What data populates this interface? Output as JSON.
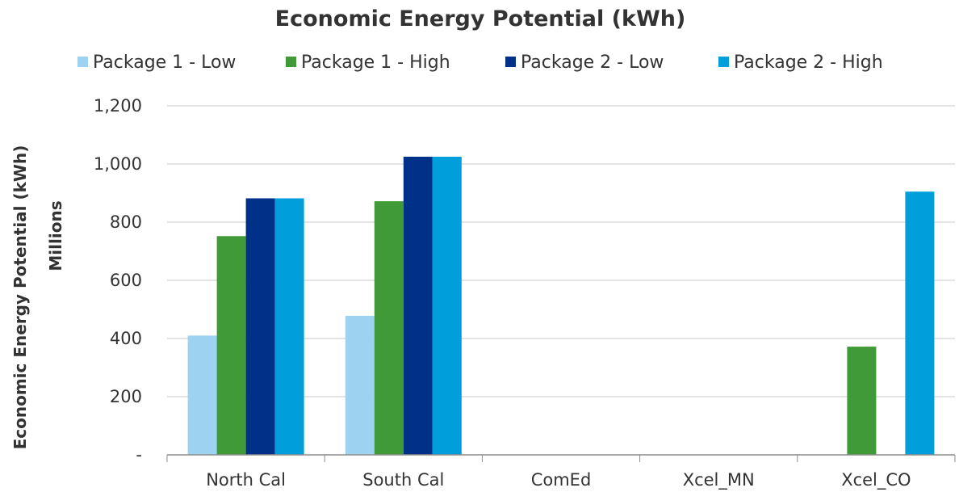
{
  "chart_data": {
    "type": "bar",
    "title": "Economic Energy Potential (kWh)",
    "ylabel": "Economic Energy Potential (kWh)",
    "ylabel_units": "Millions",
    "xlabel": "",
    "categories": [
      "North Cal",
      "South Cal",
      "ComEd",
      "Xcel_MN",
      "Xcel_CO"
    ],
    "series": [
      {
        "name": "Package 1 - Low",
        "color": "#9dd3f0",
        "values": [
          410,
          478,
          0,
          0,
          0
        ]
      },
      {
        "name": "Package 1 - High",
        "color": "#3f9a37",
        "values": [
          752,
          872,
          0,
          0,
          372
        ]
      },
      {
        "name": "Package 2 - Low",
        "color": "#003189",
        "values": [
          882,
          1025,
          0,
          0,
          0
        ]
      },
      {
        "name": "Package 2 - High",
        "color": "#009fdb",
        "values": [
          882,
          1025,
          0,
          0,
          905
        ]
      }
    ],
    "ylim": [
      0,
      1200
    ],
    "yticks": [
      0,
      200,
      400,
      600,
      800,
      1000,
      1200
    ],
    "ytick_labels": [
      "-",
      "200",
      "400",
      "600",
      "800",
      "1,000",
      "1,200"
    ],
    "grid": "horizontal",
    "legend_position": "top"
  }
}
